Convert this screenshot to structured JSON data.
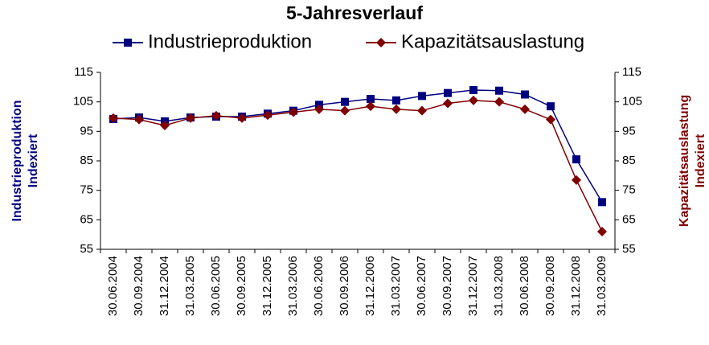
{
  "chart_data": {
    "type": "line",
    "title": "5-Jahresverlauf",
    "categories": [
      "30.06.2004",
      "30.09.2004",
      "31.12.2004",
      "31.03.2005",
      "30.06.2005",
      "30.09.2005",
      "31.12.2005",
      "31.03.2006",
      "30.06.2006",
      "30.09.2006",
      "31.12.2006",
      "31.03.2007",
      "30.06.2007",
      "30.09.2007",
      "31.12.2007",
      "31.03.2008",
      "30.06.2008",
      "30.09.2008",
      "31.12.2008",
      "31.03.2009"
    ],
    "series": [
      {
        "name": "Industrieproduktion",
        "color": "#000080",
        "marker": "square",
        "values": [
          99.2,
          99.7,
          98.4,
          99.7,
          100,
          100,
          101,
          102,
          104,
          105,
          106,
          105.5,
          107,
          108,
          109,
          108.8,
          107.5,
          103.5,
          85.5,
          71
        ]
      },
      {
        "name": "Kapazitätsauslastung",
        "color": "#800000",
        "marker": "diamond",
        "axis": "y2",
        "values": [
          99.5,
          99,
          97,
          99.5,
          100.3,
          99.5,
          100.5,
          101.5,
          102.5,
          102,
          103.5,
          102.5,
          102,
          104.5,
          105.5,
          105,
          102.5,
          99,
          78.5,
          61
        ]
      }
    ],
    "ylabel": [
      "Industrieproduktion",
      "Indexiert"
    ],
    "y2label": [
      "Kapazitätsauslastung",
      "Indexiert"
    ],
    "ylim": [
      55,
      115
    ],
    "yticks": [
      55,
      65,
      75,
      85,
      95,
      105,
      115
    ],
    "y2lim": [
      55,
      115
    ],
    "y2ticks": [
      55,
      65,
      75,
      85,
      95,
      105,
      115
    ],
    "grid": false,
    "legend": "top"
  }
}
